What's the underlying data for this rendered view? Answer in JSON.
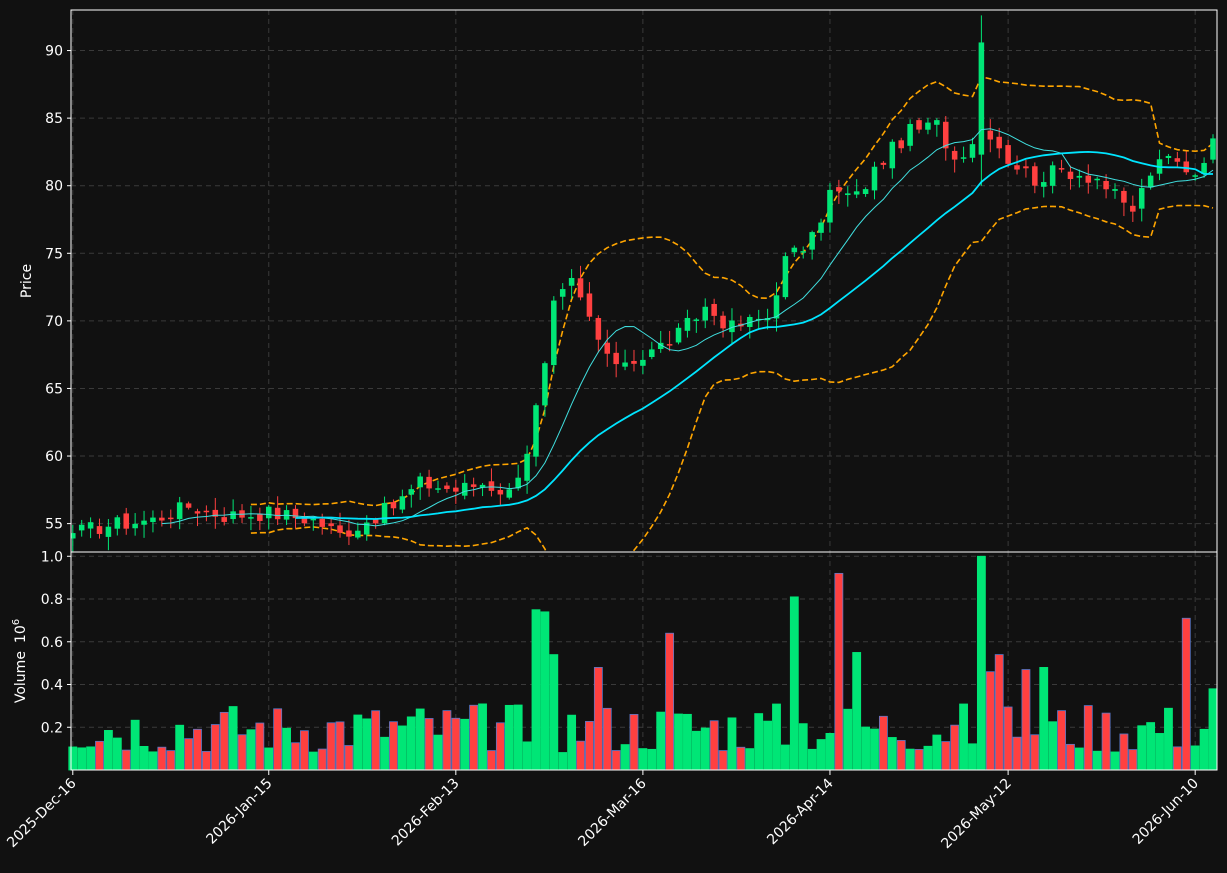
{
  "chart_data": [
    {
      "type": "candlestick",
      "ylabel": "Price",
      "ylim": [
        52.9,
        93.0
      ],
      "yticks": [
        55,
        60,
        65,
        70,
        75,
        80,
        85,
        90
      ],
      "grid": true,
      "x_start": "2025-12-16",
      "x_end": "2026-06-12",
      "xticks": [
        {
          "date": "2025-12-16",
          "label": "2025-Dec-16"
        },
        {
          "date": "2026-01-15",
          "label": "2026-Jan-15"
        },
        {
          "date": "2026-02-13",
          "label": "2026-Feb-13"
        },
        {
          "date": "2026-03-16",
          "label": "2026-Mar-16"
        },
        {
          "date": "2026-04-14",
          "label": "2026-Apr-14"
        },
        {
          "date": "2026-05-12",
          "label": "2026-May-12"
        },
        {
          "date": "2026-06-10",
          "label": "2026-Jun-10"
        }
      ],
      "close_anchors": [
        [
          "2025-12-16",
          54.3
        ],
        [
          "2025-12-22",
          54.9
        ],
        [
          "2025-12-29",
          55.3
        ],
        [
          "2026-01-02",
          56.3
        ],
        [
          "2026-01-08",
          55.6
        ],
        [
          "2026-01-15",
          55.8
        ],
        [
          "2026-01-22",
          55.3
        ],
        [
          "2026-01-27",
          54.2
        ],
        [
          "2026-01-30",
          55.2
        ],
        [
          "2026-02-04",
          56.3
        ],
        [
          "2026-02-09",
          58.0
        ],
        [
          "2026-02-13",
          57.5
        ],
        [
          "2026-02-18",
          58.0
        ],
        [
          "2026-02-23",
          57.3
        ],
        [
          "2026-02-25",
          60.5
        ],
        [
          "2026-02-27",
          66.5
        ],
        [
          "2026-03-02",
          71.0
        ],
        [
          "2026-03-04",
          72.8
        ],
        [
          "2026-03-06",
          70.2
        ],
        [
          "2026-03-10",
          67.0
        ],
        [
          "2026-03-16",
          67.3
        ],
        [
          "2026-03-20",
          69.0
        ],
        [
          "2026-03-25",
          71.0
        ],
        [
          "2026-03-30",
          69.5
        ],
        [
          "2026-04-03",
          70.3
        ],
        [
          "2026-04-07",
          74.5
        ],
        [
          "2026-04-10",
          76.0
        ],
        [
          "2026-04-14",
          79.5
        ],
        [
          "2026-04-17",
          79.2
        ],
        [
          "2026-04-22",
          82.0
        ],
        [
          "2026-04-27",
          84.0
        ],
        [
          "2026-04-30",
          84.5
        ],
        [
          "2026-05-04",
          82.0
        ],
        [
          "2026-05-08",
          84.8
        ],
        [
          "2026-05-09",
          84.0
        ],
        [
          "2026-05-12",
          82.0
        ],
        [
          "2026-05-15",
          80.5
        ],
        [
          "2026-05-20",
          81.2
        ],
        [
          "2026-05-26",
          80.6
        ],
        [
          "2026-05-29",
          78.5
        ],
        [
          "2026-06-01",
          78.2
        ],
        [
          "2026-06-03",
          81.0
        ],
        [
          "2026-06-05",
          82.0
        ],
        [
          "2026-06-10",
          81.0
        ],
        [
          "2026-06-12",
          83.5
        ]
      ],
      "overlays": [
        {
          "kind": "moving-average",
          "window": 10,
          "color": "#40e0e0",
          "width": 1
        },
        {
          "kind": "moving-average",
          "window": 25,
          "color": "#00e5ff",
          "width": 1.8
        },
        {
          "kind": "bollinger",
          "window": 20,
          "std": 2,
          "color": "#ffa500",
          "dash": true
        }
      ],
      "colors": {
        "up": "#00e676",
        "down": "#ff4040",
        "background": "#111111",
        "grid": "#3a3a3a",
        "axis": "#ffffff"
      }
    },
    {
      "type": "bar",
      "ylabel": "Volume",
      "ylabel_exponent": "10",
      "ylabel_exponent_power": "6",
      "ylim": [
        0.0,
        1.02
      ],
      "yticks": [
        0.2,
        0.4,
        0.6,
        0.8,
        1.0
      ],
      "ytick_labels": [
        "0.2",
        "0.4",
        "0.6",
        "0.8",
        "1.0"
      ],
      "grid": true,
      "spikes": [
        [
          "2026-02-26",
          0.75
        ],
        [
          "2026-02-27",
          0.74
        ],
        [
          "2026-03-02",
          0.54
        ],
        [
          "2026-03-09",
          0.48
        ],
        [
          "2026-03-19",
          0.64
        ],
        [
          "2026-04-08",
          0.81
        ],
        [
          "2026-04-15",
          0.92
        ],
        [
          "2026-04-17",
          0.55
        ],
        [
          "2026-05-07",
          1.0
        ],
        [
          "2026-05-08",
          0.46
        ],
        [
          "2026-05-11",
          0.54
        ],
        [
          "2026-05-14",
          0.47
        ],
        [
          "2026-05-18",
          0.48
        ],
        [
          "2026-06-09",
          0.71
        ],
        [
          "2026-06-12",
          0.38
        ]
      ],
      "base_volume": 0.2
    }
  ]
}
